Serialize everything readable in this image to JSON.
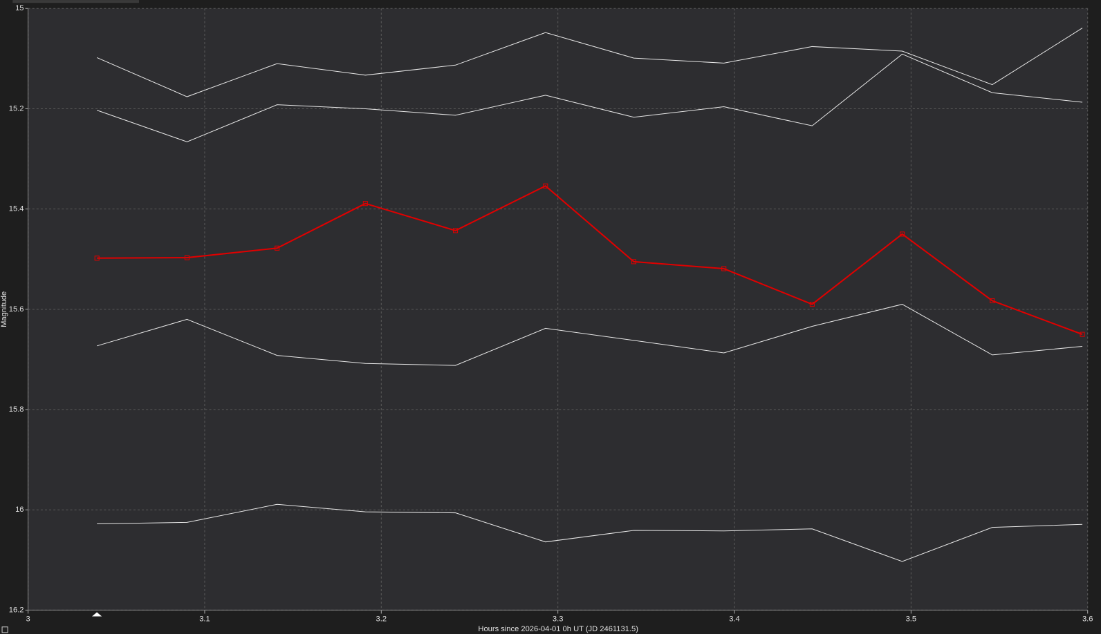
{
  "chart_data": {
    "type": "line",
    "x_label": "Hours since 2026-04-01 0h UT (JD 2461131.5)",
    "y_label": "Magnitude",
    "x": [
      3.039,
      3.09,
      3.141,
      3.191,
      3.242,
      3.293,
      3.343,
      3.394,
      3.444,
      3.495,
      3.546,
      3.597
    ],
    "series": [
      {
        "color": "#e00000",
        "markers": true,
        "values": [
          15.498,
          15.497,
          15.478,
          15.389,
          15.443,
          15.354,
          15.505,
          15.519,
          15.59,
          15.45,
          15.583,
          15.65
        ]
      },
      {
        "color": "#e8e8e8",
        "markers": false,
        "values": [
          15.098,
          15.176,
          15.11,
          15.133,
          15.113,
          15.048,
          15.099,
          15.109,
          15.076,
          15.085,
          15.152,
          15.039
        ]
      },
      {
        "color": "#e8e8e8",
        "markers": false,
        "values": [
          15.203,
          15.266,
          15.192,
          15.2,
          15.213,
          15.173,
          15.217,
          15.196,
          15.234,
          15.091,
          15.168,
          15.187
        ]
      },
      {
        "color": "#e8e8e8",
        "markers": false,
        "values": [
          15.673,
          15.62,
          15.692,
          15.708,
          15.712,
          15.638,
          15.662,
          15.687,
          15.634,
          15.59,
          15.691,
          15.674
        ]
      },
      {
        "color": "#e8e8e8",
        "markers": false,
        "values": [
          16.028,
          16.025,
          15.989,
          16.004,
          16.006,
          16.064,
          16.041,
          16.042,
          16.038,
          16.103,
          16.035,
          16.029
        ]
      }
    ],
    "xlim": [
      3,
      3.6
    ],
    "xticks": [
      3,
      3.1,
      3.2,
      3.3,
      3.4,
      3.5,
      3.6
    ],
    "ylim": [
      15,
      16.2
    ],
    "yticks": [
      15,
      15.2,
      15.4,
      15.6,
      15.8,
      16,
      16.2
    ],
    "y_inverted": true,
    "grid": true
  }
}
